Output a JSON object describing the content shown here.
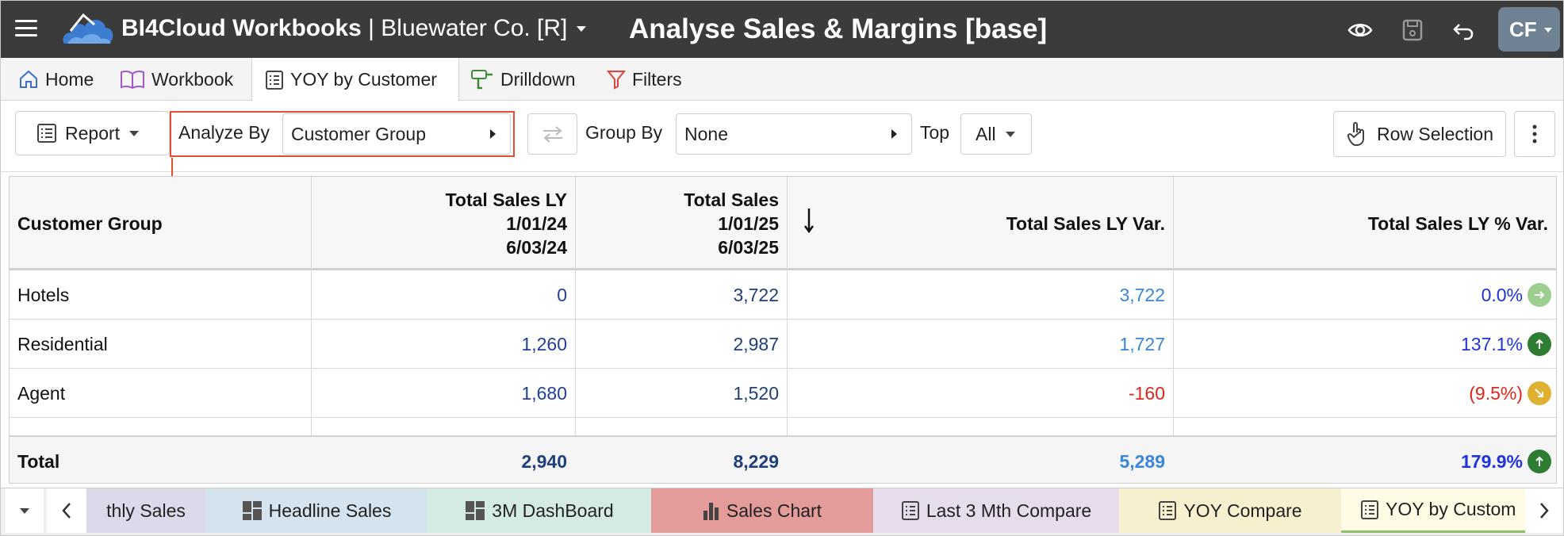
{
  "header": {
    "app_name": "BI4Cloud Workbooks",
    "separator": "|",
    "company": "Bluewater Co. [R]",
    "page_title": "Analyse Sales & Margins [base]",
    "avatar_initials": "CF"
  },
  "nav": {
    "tabs": [
      {
        "label": "Home",
        "icon": "home-icon"
      },
      {
        "label": "Workbook",
        "icon": "book-icon"
      },
      {
        "label": "YOY by Customer",
        "icon": "report-icon",
        "active": true
      },
      {
        "label": "Drilldown",
        "icon": "drill-icon"
      },
      {
        "label": "Filters",
        "icon": "filter-icon"
      }
    ]
  },
  "toolbar": {
    "report_label": "Report",
    "analyze_by_label": "Analyze By",
    "analyze_by_value": "Customer Group",
    "group_by_label": "Group By",
    "group_by_value": "None",
    "top_label": "Top",
    "top_value": "All",
    "row_selection_label": "Row Selection"
  },
  "table": {
    "headers": {
      "col1": "Customer Group",
      "col2": [
        "Total Sales LY",
        "1/01/24",
        "6/03/24"
      ],
      "col3": [
        "Total Sales",
        "1/01/25",
        "6/03/25"
      ],
      "col4": "Total Sales LY Var.",
      "col5": "Total Sales LY % Var."
    },
    "rows": [
      {
        "group": "Hotels",
        "ly": "0",
        "sales": "3,722",
        "var": "3,722",
        "pct": "0.0%",
        "trend": "flat"
      },
      {
        "group": "Residential",
        "ly": "1,260",
        "sales": "2,987",
        "var": "1,727",
        "pct": "137.1%",
        "trend": "up"
      },
      {
        "group": "Agent",
        "ly": "1,680",
        "sales": "1,520",
        "var": "-160",
        "pct": "(9.5%)",
        "trend": "down"
      }
    ],
    "total": {
      "label": "Total",
      "ly": "2,940",
      "sales": "8,229",
      "var": "5,289",
      "pct": "179.9%",
      "trend": "up"
    }
  },
  "sheets": {
    "tabs": [
      {
        "label": "thly Sales",
        "color": "#ddd8ea",
        "icon": ""
      },
      {
        "label": "Headline Sales",
        "color": "#d5e3ef",
        "icon": "dashboard-icon"
      },
      {
        "label": "3M DashBoard",
        "color": "#d3ebe3",
        "icon": "dashboard-icon"
      },
      {
        "label": "Sales Chart",
        "color": "#e39c9a",
        "icon": "bar-chart-icon"
      },
      {
        "label": "Last 3 Mth Compare",
        "color": "#e6dcec",
        "icon": "report-icon"
      },
      {
        "label": "YOY Compare",
        "color": "#f7f0cf",
        "icon": "report-icon"
      },
      {
        "label": "YOY by Custom",
        "color": "#fffbe4",
        "icon": "report-icon",
        "active": true
      }
    ]
  },
  "colors": {
    "header_bg": "#3b3b3b",
    "value_blue": "#1f3f7a",
    "link_blue": "#3a86d8",
    "pct_blue": "#1e34d8",
    "negative_red": "#e0251b",
    "up_green": "#2e7d32",
    "flat_green": "#9ccf8f",
    "down_yellow": "#e0b030",
    "highlight_red": "#e05030"
  }
}
